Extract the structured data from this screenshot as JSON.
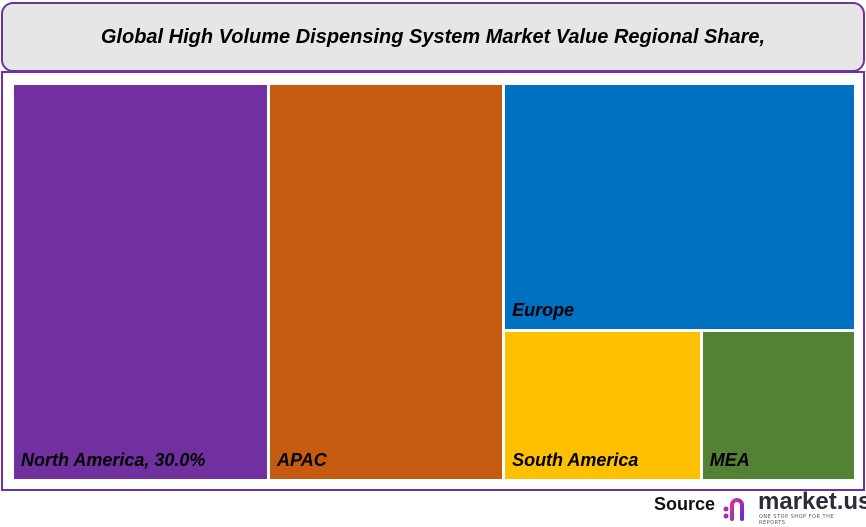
{
  "chart_data": {
    "type": "treemap",
    "title": "Global High Volume Dispensing System Market Value Regional Share,",
    "items": [
      {
        "name": "North America",
        "label": "North America, 30.0%",
        "value": 30.0,
        "color": "#7030a0"
      },
      {
        "name": "APAC",
        "label": "APAC",
        "value": 27.7,
        "color": "#c55a11"
      },
      {
        "name": "Europe",
        "label": "Europe",
        "value": 25.7,
        "color": "#0070c0"
      },
      {
        "name": "South America",
        "label": "South America",
        "value": 8.8,
        "color": "#ffc000"
      },
      {
        "name": "MEA",
        "label": "MEA",
        "value": 6.8,
        "color": "#548235"
      }
    ]
  },
  "source": {
    "label": "Source",
    "logo_text": "market.us",
    "logo_tagline": "ONE STOP SHOP FOR THE REPORTS"
  },
  "colors": {
    "frame": "#7030a0",
    "title_bg": "#e7e6e6"
  }
}
